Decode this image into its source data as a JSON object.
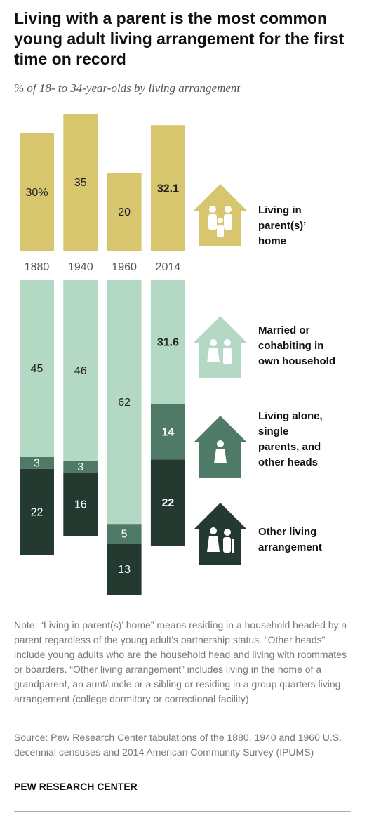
{
  "chart_data": {
    "type": "diverging-stacked-bar",
    "title": "Living with a parent is the most common young adult living arrangement for the first time on record",
    "subtitle": "% of 18- to 34-year-olds by living arrangement",
    "categories": [
      "1880",
      "1940",
      "1960",
      "2014"
    ],
    "series": [
      {
        "name": "Living in parent(s)’ home",
        "color": "#d8c66f",
        "values": [
          30,
          35,
          20,
          32.1
        ],
        "value_labels": [
          "30%",
          "35",
          "20",
          "32.1"
        ]
      },
      {
        "name": "Married or cohabiting in own household",
        "color": "#b3d9c5",
        "values": [
          45,
          46,
          62,
          31.6
        ]
      },
      {
        "name": "Living alone, single parents, and other heads",
        "color": "#4f7a67",
        "values": [
          3,
          3,
          5,
          14
        ]
      },
      {
        "name": "Other living arrangement",
        "color": "#24392f",
        "values": [
          22,
          16,
          13,
          22
        ]
      }
    ],
    "note": "Note: “Living in parent(s)’ home” means residing in a household headed by a parent regardless of the young adult’s partnership status. “Other heads” include young adults who are the household head and living with roommates or boarders. “Other living arrangement” includes living in the home of a grandparent, an aunt/uncle or a sibling or residing in a group quarters living arrangement (college dormitory or correctional facility).",
    "source": "Source: Pew Research Center tabulations of the 1880, 1940 and 1960 U.S. decennial censuses and 2014 American Community Survey (IPUMS)",
    "credit": "PEW RESEARCH CENTER"
  }
}
